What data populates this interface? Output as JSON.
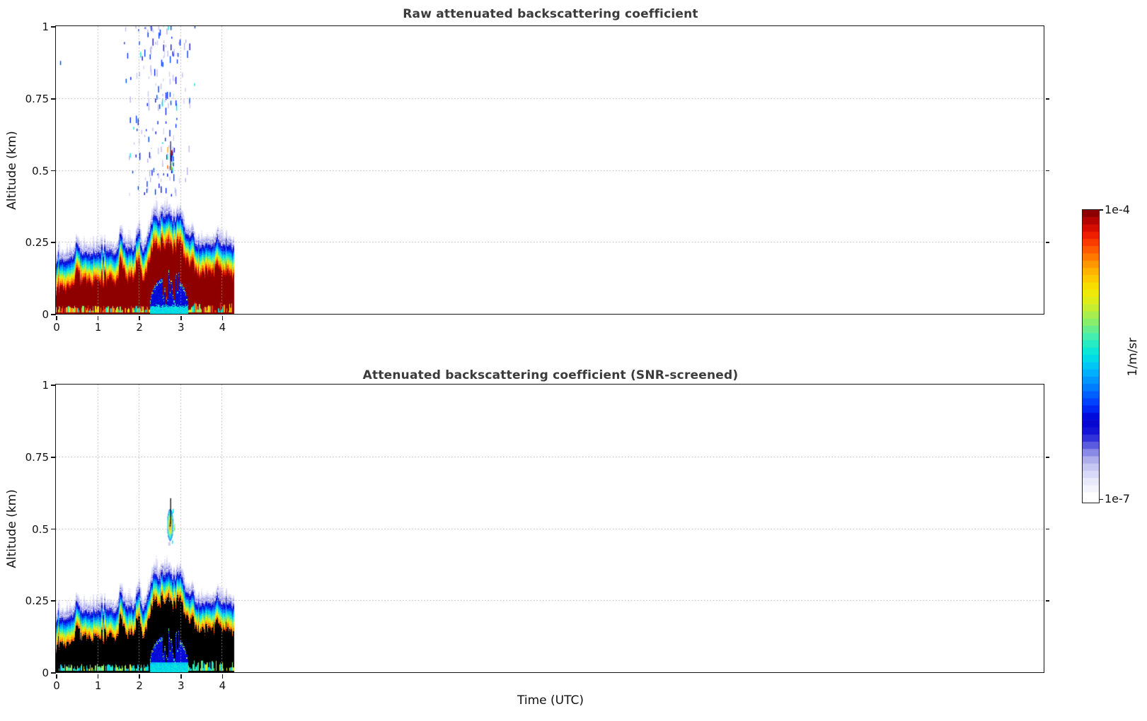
{
  "chart_data": {
    "type": "heatmap",
    "panels": [
      {
        "title": "Raw attenuated backscattering coefficient",
        "mode": "raw"
      },
      {
        "title": "Attenuated backscattering coefficient (SNR-screened)",
        "mode": "screened"
      }
    ],
    "xlabel": "Time (UTC)",
    "ylabel": "Altitude (km)",
    "xticks": [
      0,
      1,
      2,
      3,
      4
    ],
    "xtick_labels": [
      "0",
      "1",
      "2",
      "3",
      "4"
    ],
    "yticks": [
      0,
      0.25,
      0.5,
      0.75,
      1
    ],
    "ytick_labels": [
      "0",
      "0.25",
      "0.5",
      "0.75",
      "1"
    ],
    "ylim_km": [
      0,
      1
    ],
    "grid": true,
    "time_start": 0,
    "time_step": 0.05,
    "time_end": 4.27,
    "layer_top_km": [
      0.19,
      0.195,
      0.2,
      0.198,
      0.195,
      0.2,
      0.205,
      0.208,
      0.21,
      0.23,
      0.262,
      0.235,
      0.222,
      0.22,
      0.222,
      0.218,
      0.215,
      0.218,
      0.22,
      0.223,
      0.225,
      0.222,
      0.22,
      0.225,
      0.23,
      0.235,
      0.232,
      0.225,
      0.222,
      0.23,
      0.245,
      0.29,
      0.268,
      0.24,
      0.235,
      0.238,
      0.24,
      0.237,
      0.235,
      0.3,
      0.272,
      0.24,
      0.238,
      0.25,
      0.268,
      0.3,
      0.33,
      0.348,
      0.36,
      0.342,
      0.335,
      0.352,
      0.347,
      0.355,
      0.372,
      0.35,
      0.332,
      0.34,
      0.347,
      0.35,
      0.352,
      0.33,
      0.302,
      0.288,
      0.28,
      0.295,
      0.285,
      0.258,
      0.25,
      0.248,
      0.242,
      0.25,
      0.258,
      0.248,
      0.242,
      0.252,
      0.258,
      0.27,
      0.278,
      0.258,
      0.242,
      0.25,
      0.258,
      0.252,
      0.245,
      0.24
    ],
    "attenuated_zone": {
      "t_start": 2.26,
      "t_end": 3.19,
      "max_depth_km": 0.132
    },
    "elevated_cloud": {
      "t_center": 2.75,
      "alt_center_km": 0.513,
      "t_halfwidth": 0.075,
      "alt_halfheight_km": 0.055
    },
    "raw_noise_speckles": {
      "t_range": [
        1.64,
        3.35
      ],
      "alt_range": [
        0.385,
        1.0
      ],
      "count": 175
    },
    "lone_specks": [
      {
        "t": 0.1,
        "alt_km": 0.865,
        "len_km": 0.014,
        "v": 0.33
      }
    ],
    "colorbar": {
      "max_label": "1e-4",
      "min_label": "1e-7",
      "unit_label": "1/m/sr",
      "n_steps": 40
    },
    "colormap_stops": [
      [
        0.0,
        "#ffffff"
      ],
      [
        0.05,
        "#eaeafc"
      ],
      [
        0.1,
        "#c9c9f4"
      ],
      [
        0.14,
        "#a2a2e9"
      ],
      [
        0.18,
        "#5a5ae0"
      ],
      [
        0.22,
        "#1a1ad6"
      ],
      [
        0.27,
        "#0000d0"
      ],
      [
        0.32,
        "#0033ff"
      ],
      [
        0.38,
        "#0077ff"
      ],
      [
        0.44,
        "#00b4ff"
      ],
      [
        0.5,
        "#00e5e0"
      ],
      [
        0.56,
        "#3deeb5"
      ],
      [
        0.62,
        "#8fee66"
      ],
      [
        0.68,
        "#d6ee22"
      ],
      [
        0.73,
        "#f5e800"
      ],
      [
        0.78,
        "#ffc100"
      ],
      [
        0.83,
        "#ff8d00"
      ],
      [
        0.88,
        "#ff5000"
      ],
      [
        0.92,
        "#f32000"
      ],
      [
        0.96,
        "#c90500"
      ],
      [
        1.0,
        "#8e0000"
      ]
    ]
  }
}
